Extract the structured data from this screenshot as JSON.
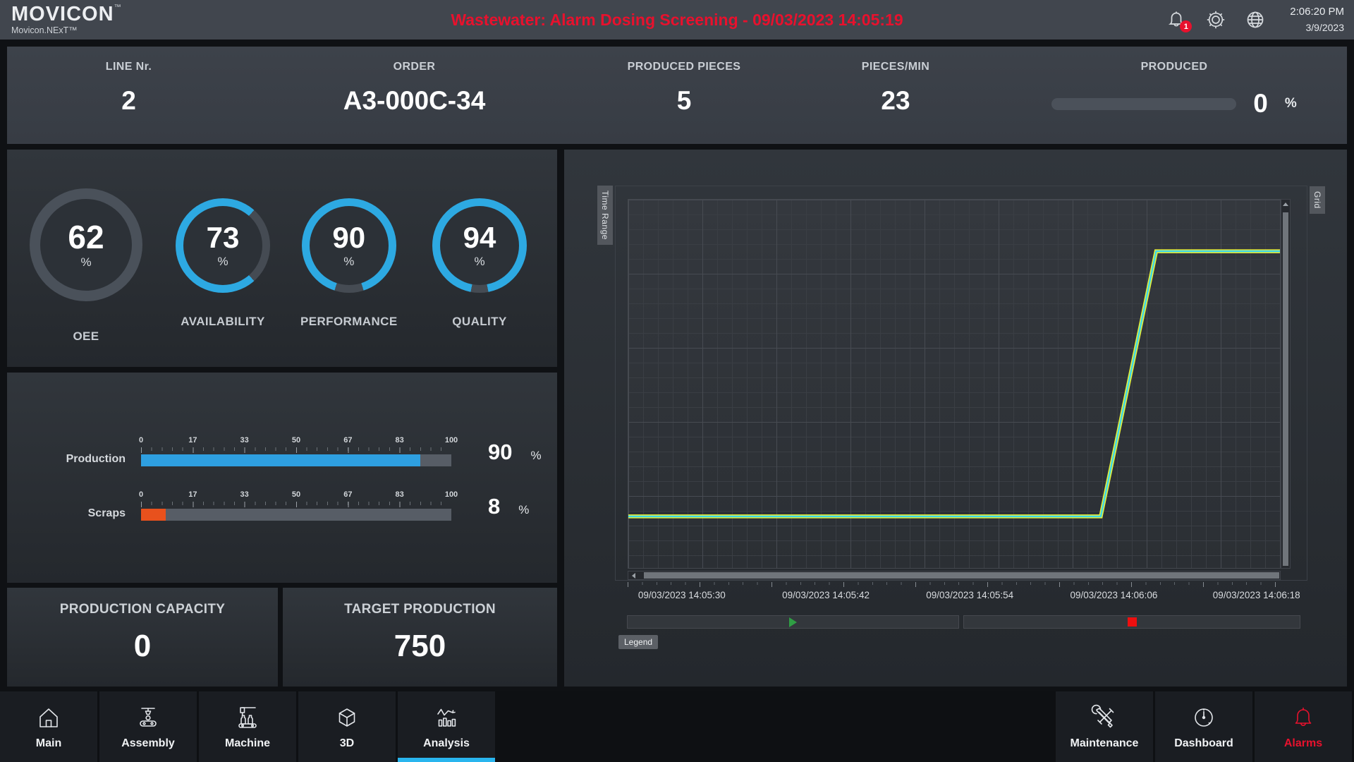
{
  "header": {
    "logo": "MOVICON",
    "logo_tm": "™",
    "logo_sub": "Movicon.NExT™",
    "alarm_banner": "Wastewater: Alarm Dosing Screening - 09/03/2023 14:05:19",
    "notification_count": "1",
    "time": "2:06:20 PM",
    "date": "3/9/2023"
  },
  "kpis": {
    "line": {
      "label": "LINE Nr.",
      "value": "2"
    },
    "order": {
      "label": "ORDER",
      "value": "A3-000C-34"
    },
    "produced_pieces": {
      "label": "PRODUCED PIECES",
      "value": "5"
    },
    "pieces_min": {
      "label": "PIECES/MIN",
      "value": "23"
    },
    "produced": {
      "label": "PRODUCED",
      "value": "0",
      "unit": "%",
      "pct": 0
    }
  },
  "gauges": {
    "oee": {
      "label": "OEE",
      "value": "62",
      "unit": "%",
      "pct": 62,
      "color": "#4a515a"
    },
    "availability": {
      "label": "AVAILABILITY",
      "value": "73",
      "unit": "%",
      "pct": 73,
      "color": "#2da9e2"
    },
    "performance": {
      "label": "PERFORMANCE",
      "value": "90",
      "unit": "%",
      "pct": 90,
      "color": "#2da9e2"
    },
    "quality": {
      "label": "QUALITY",
      "value": "94",
      "unit": "%",
      "pct": 94,
      "color": "#2da9e2"
    }
  },
  "sliders": {
    "scale": [
      "0",
      "17",
      "33",
      "50",
      "67",
      "83",
      "100"
    ],
    "production": {
      "label": "Production",
      "value": "90",
      "unit": "%",
      "pct": 90
    },
    "scraps": {
      "label": "Scraps",
      "value": "8",
      "unit": "%",
      "pct": 8
    }
  },
  "cards": {
    "capacity": {
      "label": "PRODUCTION CAPACITY",
      "value": "0"
    },
    "target": {
      "label": "TARGET PRODUCTION",
      "value": "750"
    }
  },
  "chart": {
    "time_range_label": "Time Range",
    "grid_label": "Grid",
    "legend_label": "Legend",
    "chart_data": {
      "type": "line",
      "x_tick_labels": [
        "09/03/2023 14:05:30",
        "09/03/2023 14:05:42",
        "09/03/2023 14:05:54",
        "09/03/2023 14:06:06",
        "09/03/2023 14:06:18"
      ],
      "x_tick_positions_pct": [
        8.3,
        30.35,
        52.4,
        74.45,
        96.3
      ],
      "grid": true,
      "legend": "collapsed",
      "y_axis_labels_visible": false,
      "series": [
        {
          "color": "#e6f03a",
          "points_pct": [
            [
              0,
              86
            ],
            [
              72.5,
              86
            ],
            [
              81,
              14
            ],
            [
              100,
              14
            ]
          ]
        },
        {
          "color": "#3bd6ea",
          "points_pct": [
            [
              0,
              86
            ],
            [
              72.5,
              86
            ],
            [
              81,
              14
            ],
            [
              100,
              14
            ]
          ]
        }
      ]
    }
  },
  "nav": {
    "items": [
      {
        "label": "Main"
      },
      {
        "label": "Assembly"
      },
      {
        "label": "Machine"
      },
      {
        "label": "3D"
      },
      {
        "label": "Analysis"
      },
      {
        "label": "Maintenance"
      },
      {
        "label": "Dashboard"
      },
      {
        "label": "Alarms"
      }
    ]
  },
  "colors": {
    "accent_blue": "#2da9e2",
    "nav_active_underline": "#29b5ee",
    "alarm_red": "#e8112d",
    "production_bar": "#2e9fe0",
    "scraps_bar": "#e8511d",
    "play_green": "#2f9e44",
    "stop_red": "#ee0f0f"
  }
}
